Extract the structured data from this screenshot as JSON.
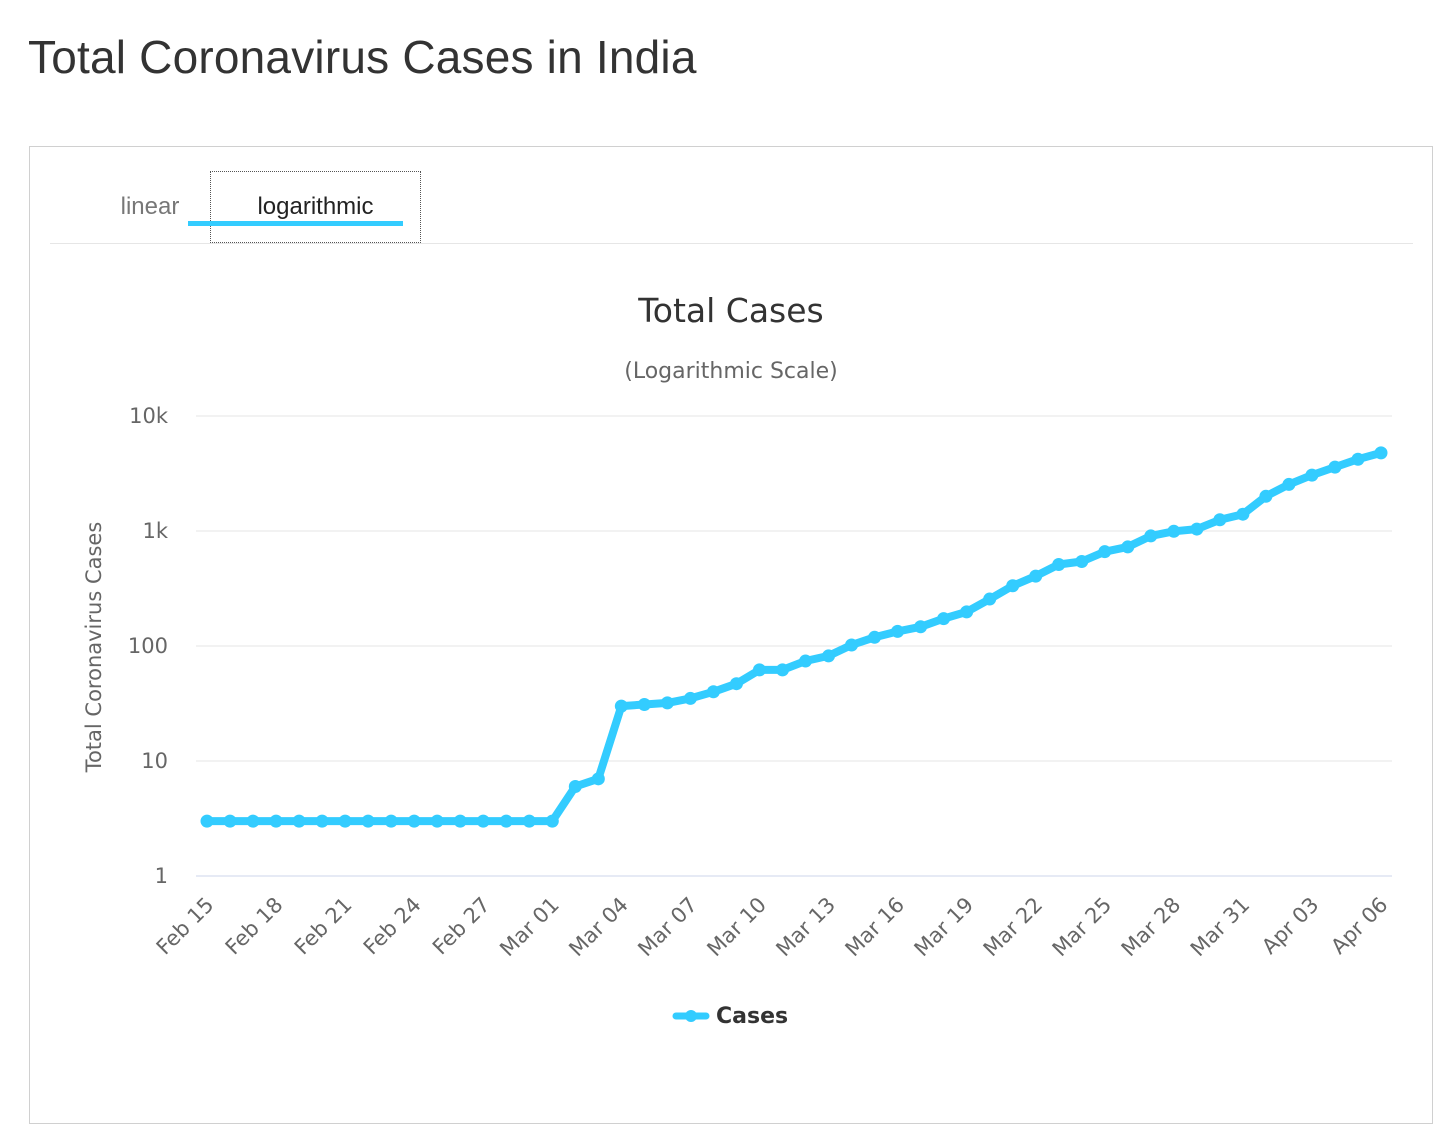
{
  "page": {
    "title": "Total Coronavirus Cases in India"
  },
  "tabs": [
    {
      "label": "linear",
      "active": false
    },
    {
      "label": "logarithmic",
      "active": true
    }
  ],
  "colors": {
    "series": "#33ccff",
    "grid": "#e6e6e6",
    "tab_underline": "#33ccff"
  },
  "chart_data": {
    "type": "line",
    "title": "Total Cases",
    "subtitle": "(Logarithmic Scale)",
    "ylabel": "Total Coronavirus Cases",
    "xlabel": "",
    "yscale": "log",
    "ylim": [
      1,
      10000
    ],
    "y_ticks": [
      {
        "value": 1,
        "label": "1"
      },
      {
        "value": 10,
        "label": "10"
      },
      {
        "value": 100,
        "label": "100"
      },
      {
        "value": 1000,
        "label": "1k"
      },
      {
        "value": 10000,
        "label": "10k"
      }
    ],
    "x_tick_labels": [
      "Feb 15",
      "Feb 18",
      "Feb 21",
      "Feb 24",
      "Feb 27",
      "Mar 01",
      "Mar 04",
      "Mar 07",
      "Mar 10",
      "Mar 13",
      "Mar 16",
      "Mar 19",
      "Mar 22",
      "Mar 25",
      "Mar 28",
      "Mar 31",
      "Apr 03",
      "Apr 06"
    ],
    "x_tick_every": 3,
    "legend": {
      "position": "bottom-center"
    },
    "series": [
      {
        "name": "Cases",
        "values": [
          3,
          3,
          3,
          3,
          3,
          3,
          3,
          3,
          3,
          3,
          3,
          3,
          3,
          3,
          3,
          3,
          6,
          7,
          30,
          31,
          32,
          35,
          40,
          47,
          62,
          62,
          74,
          82,
          102,
          119,
          134,
          147,
          173,
          198,
          256,
          334,
          405,
          511,
          543,
          661,
          727,
          906,
          994,
          1039,
          1252,
          1400,
          2003,
          2541,
          3061,
          3594,
          4207,
          4778
        ]
      }
    ]
  }
}
